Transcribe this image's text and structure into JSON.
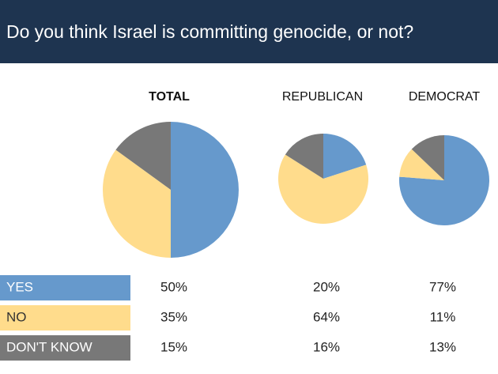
{
  "chart_data": {
    "type": "pie",
    "title": "Do you think Israel is committing genocide, or not?",
    "categories": [
      "YES",
      "NO",
      "DON'T KNOW"
    ],
    "colors": [
      "#6699cc",
      "#ffdc8c",
      "#787878"
    ],
    "series": [
      {
        "name": "TOTAL",
        "values": [
          50,
          35,
          15
        ],
        "value_labels": [
          "50%",
          "35%",
          "15%"
        ]
      },
      {
        "name": "REPUBLICAN",
        "values": [
          20,
          64,
          16
        ],
        "value_labels": [
          "20%",
          "64%",
          "16%"
        ]
      },
      {
        "name": "DEMOCRAT",
        "values": [
          77,
          11,
          13
        ],
        "value_labels": [
          "77%",
          "11%",
          "13%"
        ]
      }
    ]
  }
}
